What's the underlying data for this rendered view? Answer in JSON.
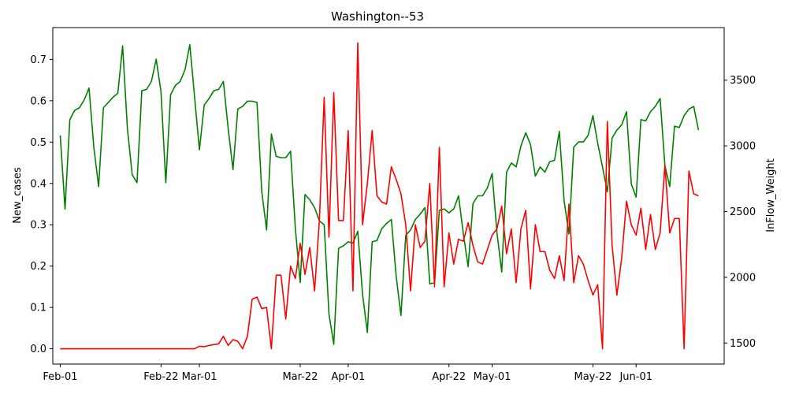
{
  "chart_data": {
    "type": "line",
    "title": "Washington--53",
    "ylabel": "New_cases",
    "y2label": "InFlow_Weight",
    "x_ticks": [
      "Feb-01",
      "Feb-22",
      "Mar-01",
      "Mar-22",
      "Apr-01",
      "Apr-22",
      "May-01",
      "May-22",
      "Jun-01"
    ],
    "x_tick_days": [
      0,
      21,
      29,
      50,
      60,
      81,
      90,
      111,
      120
    ],
    "ylim": [
      -0.037,
      0.777
    ],
    "yticks": [
      0.0,
      0.1,
      0.2,
      0.3,
      0.4,
      0.5,
      0.6,
      0.7
    ],
    "y2lim": [
      1340,
      3900
    ],
    "y2ticks": [
      1500,
      2000,
      2500,
      3000,
      3500
    ],
    "grid": false,
    "series": [
      {
        "axis": "left",
        "color": "#ff0000",
        "values": [
          0,
          0,
          0,
          0,
          0,
          0,
          0,
          0,
          0,
          0,
          0,
          0,
          0,
          0,
          0,
          0,
          0,
          0,
          0,
          0,
          0,
          0,
          0,
          0,
          0,
          0,
          0,
          0,
          0,
          0.006,
          0.005,
          0.008,
          0.01,
          0.012,
          0.03,
          0.008,
          0.022,
          0.018,
          0,
          0.03,
          0.12,
          0.125,
          0.097,
          0.1,
          0,
          0.178,
          0.178,
          0.072,
          0.2,
          0.17,
          0.255,
          0.18,
          0.245,
          0.14,
          0.31,
          0.608,
          0.27,
          0.62,
          0.31,
          0.31,
          0.528,
          0.14,
          0.74,
          0.3,
          0.4,
          0.528,
          0.37,
          0.355,
          0.35,
          0.44,
          0.41,
          0.375,
          0.3,
          0.14,
          0.3,
          0.245,
          0.26,
          0.4,
          0.15,
          0.487,
          0.15,
          0.28,
          0.205,
          0.265,
          0.26,
          0.305,
          0.25,
          0.21,
          0.205,
          0.24,
          0.275,
          0.29,
          0.345,
          0.23,
          0.29,
          0.16,
          0.29,
          0.335,
          0.145,
          0.3,
          0.235,
          0.235,
          0.19,
          0.17,
          0.225,
          0.165,
          0.35,
          0.16,
          0.225,
          0.205,
          0.165,
          0.13,
          0.155,
          0,
          0.55,
          0.25,
          0.13,
          0.22,
          0.357,
          0.3,
          0.275,
          0.34,
          0.24,
          0.325,
          0.24,
          0.28,
          0.445,
          0.28,
          0.315,
          0.315,
          0,
          0.43,
          0.375,
          0.37
        ]
      },
      {
        "axis": "right",
        "color": "#008000",
        "values": [
          3080,
          2520,
          3200,
          3270,
          3290,
          3350,
          3440,
          2990,
          2690,
          3290,
          3330,
          3370,
          3400,
          3760,
          3130,
          2780,
          2720,
          3420,
          3430,
          3490,
          3660,
          3410,
          2720,
          3390,
          3460,
          3490,
          3580,
          3770,
          3370,
          2970,
          3310,
          3360,
          3420,
          3430,
          3490,
          3130,
          2820,
          3280,
          3300,
          3340,
          3340,
          3330,
          2650,
          2360,
          3090,
          2920,
          2910,
          2910,
          2960,
          2370,
          1960,
          2630,
          2590,
          2530,
          2430,
          2400,
          1720,
          1490,
          2220,
          2240,
          2270,
          2260,
          2350,
          1870,
          1580,
          2270,
          2280,
          2370,
          2410,
          2440,
          2010,
          1710,
          2320,
          2360,
          2440,
          2480,
          2530,
          1950,
          1960,
          2510,
          2520,
          2490,
          2520,
          2620,
          2330,
          2080,
          2560,
          2620,
          2620,
          2680,
          2790,
          2340,
          2040,
          2800,
          2870,
          2840,
          3000,
          3100,
          3010,
          2770,
          2840,
          2800,
          2880,
          2890,
          3110,
          2580,
          2330,
          2990,
          3030,
          3030,
          3080,
          3230,
          3020,
          2840,
          2650,
          3060,
          3120,
          3160,
          3260,
          2710,
          2610,
          3200,
          3190,
          3260,
          3300,
          3360,
          2850,
          2690,
          3150,
          3140,
          3230,
          3280,
          3300,
          3120
        ]
      }
    ]
  }
}
